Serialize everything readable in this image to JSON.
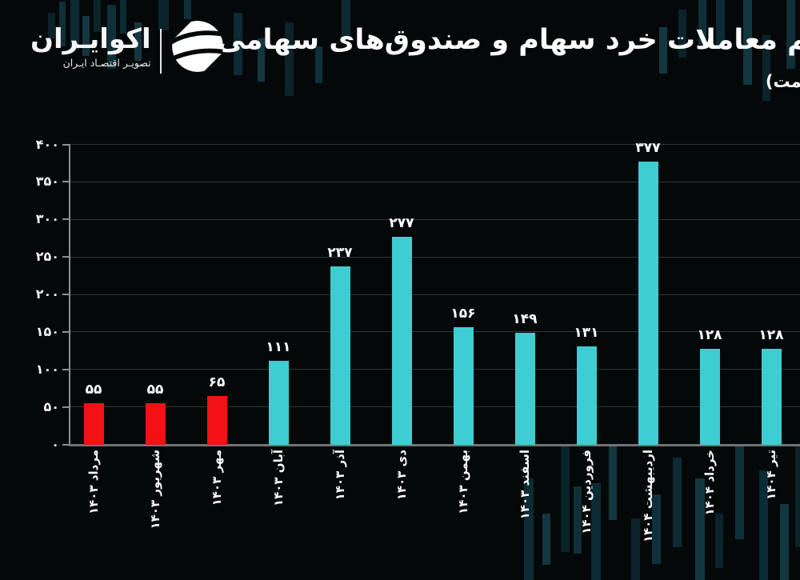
{
  "brand": {
    "name": "اکوایـران",
    "tagline": "تصویـر اقتصـاد ایـران",
    "logo_icon": "ecoiran-wave-circle-logo"
  },
  "header": {
    "title": "حجم معاملات خرد سهام و صندوق‌های سهامی",
    "unit_note": "(همت)"
  },
  "chart_data": {
    "type": "bar",
    "title": "حجم معاملات خرد سهام و صندوق‌های سهامی",
    "unit": "همت",
    "categories": [
      "مرداد ۱۴۰۳",
      "شهریور ۱۴۰۳",
      "مهر ۱۴۰۳",
      "آبان ۱۴۰۳",
      "آذر ۱۴۰۳",
      "دی ۱۴۰۳",
      "بهمن ۱۴۰۳",
      "اسفند ۱۴۰۳",
      "فروردین ۱۴۰۴",
      "اردیبهشت ۱۴۰۴",
      "خرداد ۱۴۰۴",
      "تیر ۱۴۰۴"
    ],
    "values": [
      55,
      55,
      65,
      111,
      237,
      277,
      156,
      149,
      131,
      377,
      128,
      128
    ],
    "value_labels": [
      "۵۵",
      "۵۵",
      "۶۵",
      "۱۱۱",
      "۲۳۷",
      "۲۷۷",
      "۱۵۶",
      "۱۴۹",
      "۱۳۱",
      "۳۷۷",
      "۱۲۸",
      "۱۲۸"
    ],
    "bar_colors": [
      "#f21114",
      "#f21114",
      "#f21114",
      "#3ecdd3",
      "#3ecdd3",
      "#3ecdd3",
      "#3ecdd3",
      "#3ecdd3",
      "#3ecdd3",
      "#3ecdd3",
      "#3ecdd3",
      "#3ecdd3"
    ],
    "y_ticks": [
      0,
      50,
      100,
      150,
      200,
      250,
      300,
      350,
      400
    ],
    "y_tick_labels": [
      "۰",
      "۵۰",
      "۱۰۰",
      "۱۵۰",
      "۲۰۰",
      "۲۵۰",
      "۳۰۰",
      "۳۵۰",
      "۴۰۰"
    ],
    "ylim": [
      0,
      400
    ],
    "grid": true,
    "legend": "none",
    "colors": {
      "bar_teal": "#3ecdd3",
      "bar_red": "#f21114",
      "grid": "#333638",
      "axis": "#8d9093",
      "text": "#ffffff",
      "background": "#050808"
    }
  }
}
